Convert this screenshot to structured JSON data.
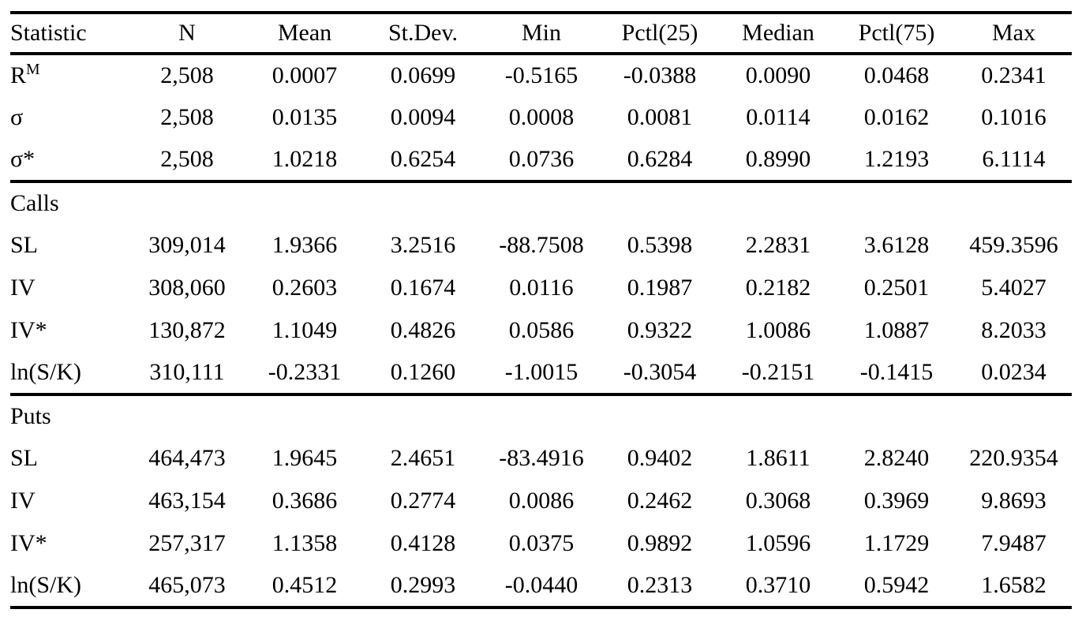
{
  "colors": {
    "background": "#ffffff",
    "text": "#000000",
    "rule": "#000000"
  },
  "table": {
    "columns": [
      "Statistic",
      "N",
      "Mean",
      "St.Dev.",
      "Min",
      "Pctl(25)",
      "Median",
      "Pctl(75)",
      "Max"
    ],
    "sections": [
      {
        "label": "",
        "rows": [
          {
            "stat": "R",
            "sup": "M",
            "values": [
              "2,508",
              "0.0007",
              "0.0699",
              "-0.5165",
              "-0.0388",
              "0.0090",
              "0.0468",
              "0.2341"
            ]
          },
          {
            "stat": "σ",
            "sup": "",
            "values": [
              "2,508",
              "0.0135",
              "0.0094",
              "0.0008",
              "0.0081",
              "0.0114",
              "0.0162",
              "0.1016"
            ]
          },
          {
            "stat": "σ*",
            "sup": "",
            "values": [
              "2,508",
              "1.0218",
              "0.6254",
              "0.0736",
              "0.6284",
              "0.8990",
              "1.2193",
              "6.1114"
            ]
          }
        ]
      },
      {
        "label": "Calls",
        "rows": [
          {
            "stat": "SL",
            "sup": "",
            "values": [
              "309,014",
              "1.9366",
              "3.2516",
              "-88.7508",
              "0.5398",
              "2.2831",
              "3.6128",
              "459.3596"
            ]
          },
          {
            "stat": "IV",
            "sup": "",
            "values": [
              "308,060",
              "0.2603",
              "0.1674",
              "0.0116",
              "0.1987",
              "0.2182",
              "0.2501",
              "5.4027"
            ]
          },
          {
            "stat": "IV*",
            "sup": "",
            "values": [
              "130,872",
              "1.1049",
              "0.4826",
              "0.0586",
              "0.9322",
              "1.0086",
              "1.0887",
              "8.2033"
            ]
          },
          {
            "stat": "ln(S/K)",
            "sup": "",
            "values": [
              "310,111",
              "-0.2331",
              "0.1260",
              "-1.0015",
              "-0.3054",
              "-0.2151",
              "-0.1415",
              "0.0234"
            ]
          }
        ]
      },
      {
        "label": "Puts",
        "rows": [
          {
            "stat": "SL",
            "sup": "",
            "values": [
              "464,473",
              "1.9645",
              "2.4651",
              "-83.4916",
              "0.9402",
              "1.8611",
              "2.8240",
              "220.9354"
            ]
          },
          {
            "stat": "IV",
            "sup": "",
            "values": [
              "463,154",
              "0.3686",
              "0.2774",
              "0.0086",
              "0.2462",
              "0.3068",
              "0.3969",
              "9.8693"
            ]
          },
          {
            "stat": "IV*",
            "sup": "",
            "values": [
              "257,317",
              "1.1358",
              "0.4128",
              "0.0375",
              "0.9892",
              "1.0596",
              "1.1729",
              "7.9487"
            ]
          },
          {
            "stat": "ln(S/K)",
            "sup": "",
            "values": [
              "465,073",
              "0.4512",
              "0.2993",
              "-0.0440",
              "0.2313",
              "0.3710",
              "0.5942",
              "1.6582"
            ]
          }
        ]
      }
    ]
  }
}
